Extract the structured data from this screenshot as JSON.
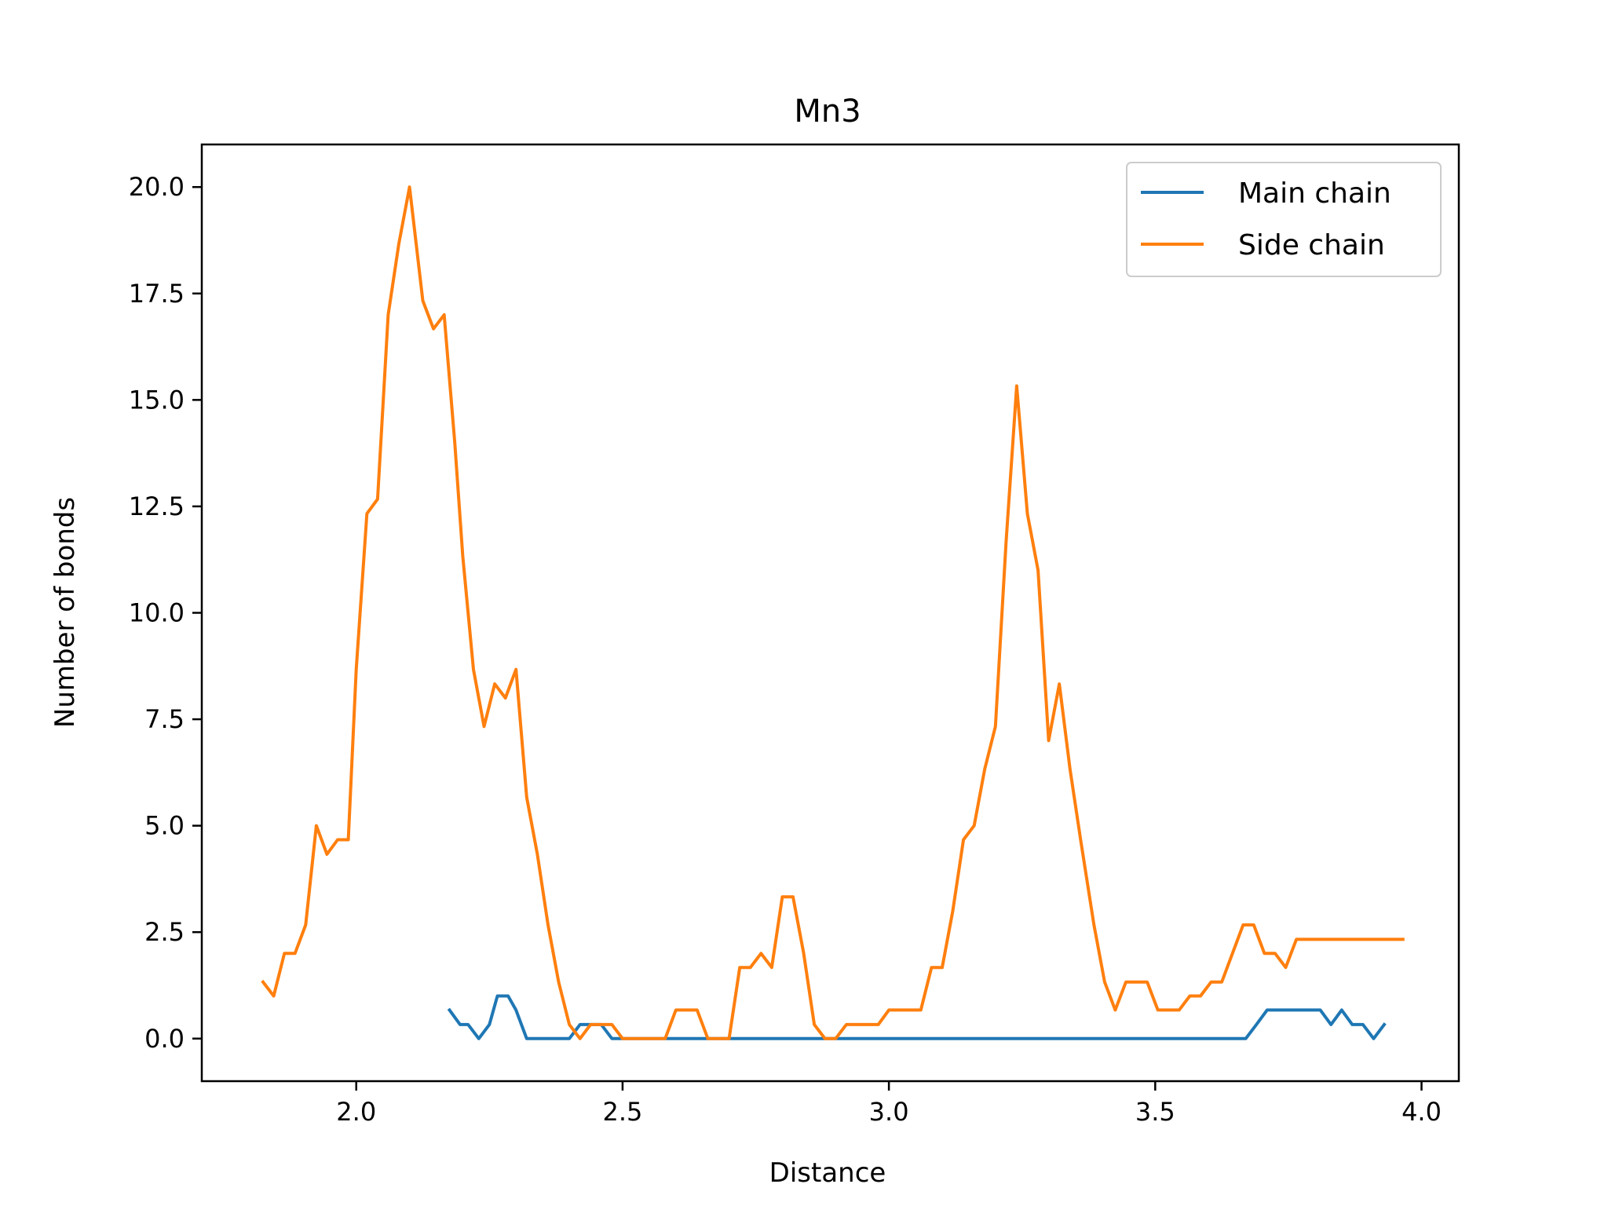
{
  "chart_data": {
    "type": "line",
    "title": "Mn3",
    "xlabel": "Distance",
    "ylabel": "Number of bonds",
    "xlim": [
      1.71,
      4.07
    ],
    "ylim": [
      -1.0,
      21.0
    ],
    "xticks": [
      2.0,
      2.5,
      3.0,
      3.5,
      4.0
    ],
    "xtick_labels": [
      "2.0",
      "2.5",
      "3.0",
      "3.5",
      "4.0"
    ],
    "yticks": [
      0.0,
      2.5,
      5.0,
      7.5,
      10.0,
      12.5,
      15.0,
      17.5,
      20.0
    ],
    "ytick_labels": [
      "0.0",
      "2.5",
      "5.0",
      "7.5",
      "10.0",
      "12.5",
      "15.0",
      "17.5",
      "20.0"
    ],
    "grid": false,
    "legend_position": "top-right",
    "series": [
      {
        "name": "Main chain",
        "color": "#1f77b4",
        "x": [
          2.175,
          2.195,
          2.21,
          2.23,
          2.25,
          2.265,
          2.285,
          2.3,
          2.32,
          2.34,
          2.36,
          2.38,
          2.4,
          2.42,
          2.44,
          2.46,
          2.48,
          2.55,
          2.65,
          2.75,
          2.85,
          2.95,
          3.05,
          3.15,
          3.25,
          3.35,
          3.45,
          3.55,
          3.65,
          3.67,
          3.69,
          3.71,
          3.73,
          3.75,
          3.77,
          3.79,
          3.81,
          3.83,
          3.85,
          3.87,
          3.89,
          3.91,
          3.93
        ],
        "y": [
          0.67,
          0.33,
          0.33,
          0.0,
          0.33,
          1.0,
          1.0,
          0.67,
          0.0,
          0.0,
          0.0,
          0.0,
          0.0,
          0.33,
          0.33,
          0.33,
          0.0,
          0.0,
          0.0,
          0.0,
          0.0,
          0.0,
          0.0,
          0.0,
          0.0,
          0.0,
          0.0,
          0.0,
          0.0,
          0.0,
          0.33,
          0.67,
          0.67,
          0.67,
          0.67,
          0.67,
          0.67,
          0.33,
          0.67,
          0.33,
          0.33,
          0.0,
          0.33
        ]
      },
      {
        "name": "Side chain",
        "color": "#ff7f0e",
        "x": [
          1.825,
          1.845,
          1.865,
          1.885,
          1.905,
          1.925,
          1.945,
          1.965,
          1.985,
          2.0,
          2.02,
          2.04,
          2.06,
          2.08,
          2.1,
          2.125,
          2.145,
          2.165,
          2.185,
          2.2,
          2.22,
          2.24,
          2.26,
          2.28,
          2.3,
          2.32,
          2.34,
          2.36,
          2.38,
          2.4,
          2.42,
          2.44,
          2.46,
          2.48,
          2.5,
          2.52,
          2.54,
          2.56,
          2.58,
          2.6,
          2.62,
          2.64,
          2.66,
          2.68,
          2.7,
          2.72,
          2.74,
          2.76,
          2.78,
          2.8,
          2.82,
          2.84,
          2.86,
          2.88,
          2.9,
          2.92,
          2.94,
          2.96,
          2.98,
          3.0,
          3.02,
          3.04,
          3.06,
          3.08,
          3.1,
          3.12,
          3.14,
          3.16,
          3.18,
          3.2,
          3.22,
          3.24,
          3.26,
          3.28,
          3.3,
          3.32,
          3.34,
          3.36,
          3.385,
          3.405,
          3.425,
          3.445,
          3.465,
          3.485,
          3.505,
          3.525,
          3.545,
          3.565,
          3.585,
          3.605,
          3.625,
          3.645,
          3.665,
          3.685,
          3.705,
          3.725,
          3.745,
          3.765,
          3.785,
          3.805,
          3.825,
          3.845,
          3.865,
          3.885,
          3.905,
          3.925,
          3.945,
          3.965
        ],
        "y": [
          1.33,
          1.0,
          2.0,
          2.0,
          2.67,
          5.0,
          4.33,
          4.67,
          4.67,
          8.67,
          12.33,
          12.67,
          17.0,
          18.67,
          20.0,
          17.33,
          16.67,
          17.0,
          14.0,
          11.33,
          8.67,
          7.33,
          8.33,
          8.0,
          8.67,
          5.67,
          4.33,
          2.67,
          1.33,
          0.33,
          0.0,
          0.33,
          0.33,
          0.33,
          0.0,
          0.0,
          0.0,
          0.0,
          0.0,
          0.67,
          0.67,
          0.67,
          0.0,
          0.0,
          0.0,
          1.67,
          1.67,
          2.0,
          1.67,
          3.33,
          3.33,
          2.0,
          0.33,
          0.0,
          0.0,
          0.33,
          0.33,
          0.33,
          0.33,
          0.67,
          0.67,
          0.67,
          0.67,
          1.67,
          1.67,
          3.0,
          4.67,
          5.0,
          6.33,
          7.33,
          11.67,
          15.33,
          12.33,
          11.0,
          7.0,
          8.33,
          6.33,
          4.67,
          2.67,
          1.33,
          0.67,
          1.33,
          1.33,
          1.33,
          0.67,
          0.67,
          0.67,
          1.0,
          1.0,
          1.33,
          1.33,
          2.0,
          2.67,
          2.67,
          2.0,
          2.0,
          1.67,
          2.33,
          2.33,
          2.33,
          2.33,
          2.33,
          2.33,
          2.33,
          2.33,
          2.33,
          2.33,
          2.33
        ]
      }
    ]
  }
}
